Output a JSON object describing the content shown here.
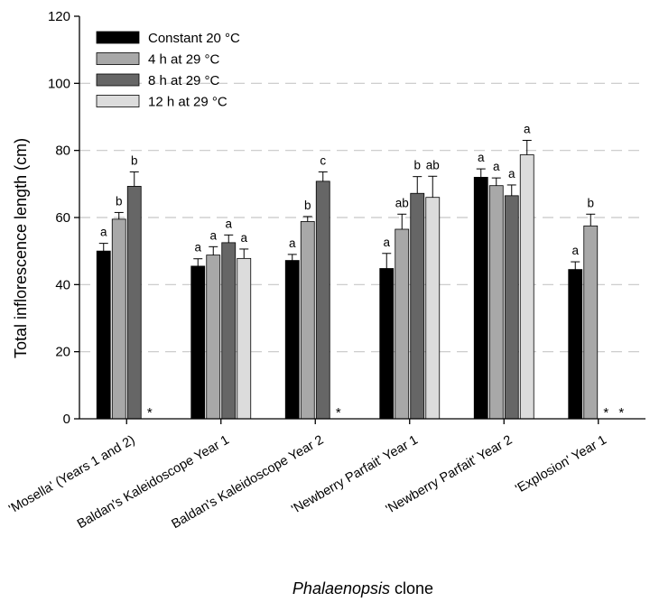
{
  "chart_data": {
    "type": "bar",
    "ylabel": "Total inflorescence length (cm)",
    "xlabel_italic": "Phalaenopsis",
    "xlabel_rest": " clone",
    "ylim": [
      0,
      120
    ],
    "yticks": [
      0,
      20,
      40,
      60,
      80,
      100,
      120
    ],
    "grid": "horizontal-dashed",
    "legend_position": "top-left",
    "categories": [
      "'Mosella' (Years 1 and 2)",
      "Baldan's Kaleidoscope Year 1",
      "Baldan's Kaleidoscope Year 2",
      "'Newberry Parfait' Year 1",
      "'Newberry Parfait' Year 2",
      "'Explosion' Year 1"
    ],
    "series": [
      {
        "name": "Constant 20 °C",
        "color": "#000000",
        "values": [
          50,
          45.5,
          47.2,
          44.8,
          72,
          44.5
        ],
        "errors": [
          2.3,
          2.2,
          1.8,
          4.5,
          2.5,
          2.3
        ],
        "letters": [
          "a",
          "a",
          "a",
          "a",
          "a",
          "a"
        ]
      },
      {
        "name": "4 h at 29 °C",
        "color": "#a8a8a8",
        "values": [
          59.5,
          48.8,
          58.8,
          56.5,
          69.5,
          57.5
        ],
        "errors": [
          2.0,
          2.5,
          1.5,
          4.5,
          2.3,
          3.5
        ],
        "letters": [
          "b",
          "a",
          "b",
          "ab",
          "a",
          "b"
        ]
      },
      {
        "name": "8 h at 29 °C",
        "color": "#666666",
        "values": [
          69.3,
          52.5,
          70.8,
          67.2,
          66.5,
          null
        ],
        "errors": [
          4.3,
          2.3,
          2.8,
          5.0,
          3.2,
          null
        ],
        "letters": [
          "b",
          "a",
          "c",
          "b",
          "a",
          null
        ]
      },
      {
        "name": "12 h at 29 °C",
        "color": "#dcdcdc",
        "values": [
          null,
          47.8,
          null,
          66,
          78.7,
          null
        ],
        "errors": [
          null,
          2.8,
          null,
          6.3,
          4.3,
          null
        ],
        "letters": [
          null,
          "a",
          null,
          "ab",
          "a",
          null
        ]
      }
    ],
    "missing_markers": [
      {
        "category": 0,
        "series": [
          3
        ],
        "text": "*"
      },
      {
        "category": 2,
        "series": [
          3
        ],
        "text": "*"
      },
      {
        "category": 5,
        "series": [
          2,
          3
        ],
        "text": "*"
      }
    ]
  }
}
